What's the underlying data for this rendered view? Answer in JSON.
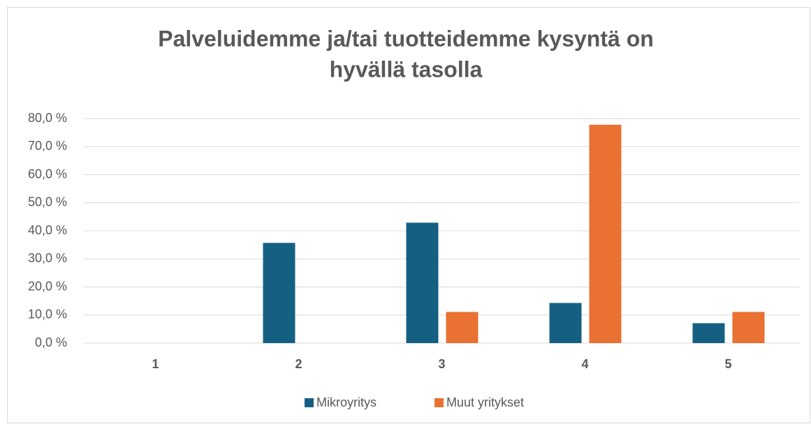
{
  "chart_data": {
    "type": "bar",
    "title": [
      "Palveluidemme ja/tai tuotteidemme kysyntä on",
      "hyvällä tasolla"
    ],
    "categories": [
      "1",
      "2",
      "3",
      "4",
      "5"
    ],
    "series": [
      {
        "name": "Mikroyritys",
        "color": "#156082",
        "values": [
          0,
          35.7,
          42.9,
          14.3,
          7.1
        ]
      },
      {
        "name": "Muut yritykset",
        "color": "#e97132",
        "values": [
          0,
          0,
          11.1,
          77.8,
          11.1
        ]
      }
    ],
    "ylim": [
      0,
      80
    ],
    "yticks": [
      {
        "value": 0,
        "label": "0,0 %"
      },
      {
        "value": 10,
        "label": "10,0 %"
      },
      {
        "value": 20,
        "label": "20,0 %"
      },
      {
        "value": 30,
        "label": "30,0 %"
      },
      {
        "value": 40,
        "label": "40,0 %"
      },
      {
        "value": 50,
        "label": "50,0 %"
      },
      {
        "value": 60,
        "label": "60,0 %"
      },
      {
        "value": 70,
        "label": "70,0 %"
      },
      {
        "value": 80,
        "label": "80,0 %"
      }
    ],
    "grid": true,
    "legend": "bottom"
  }
}
